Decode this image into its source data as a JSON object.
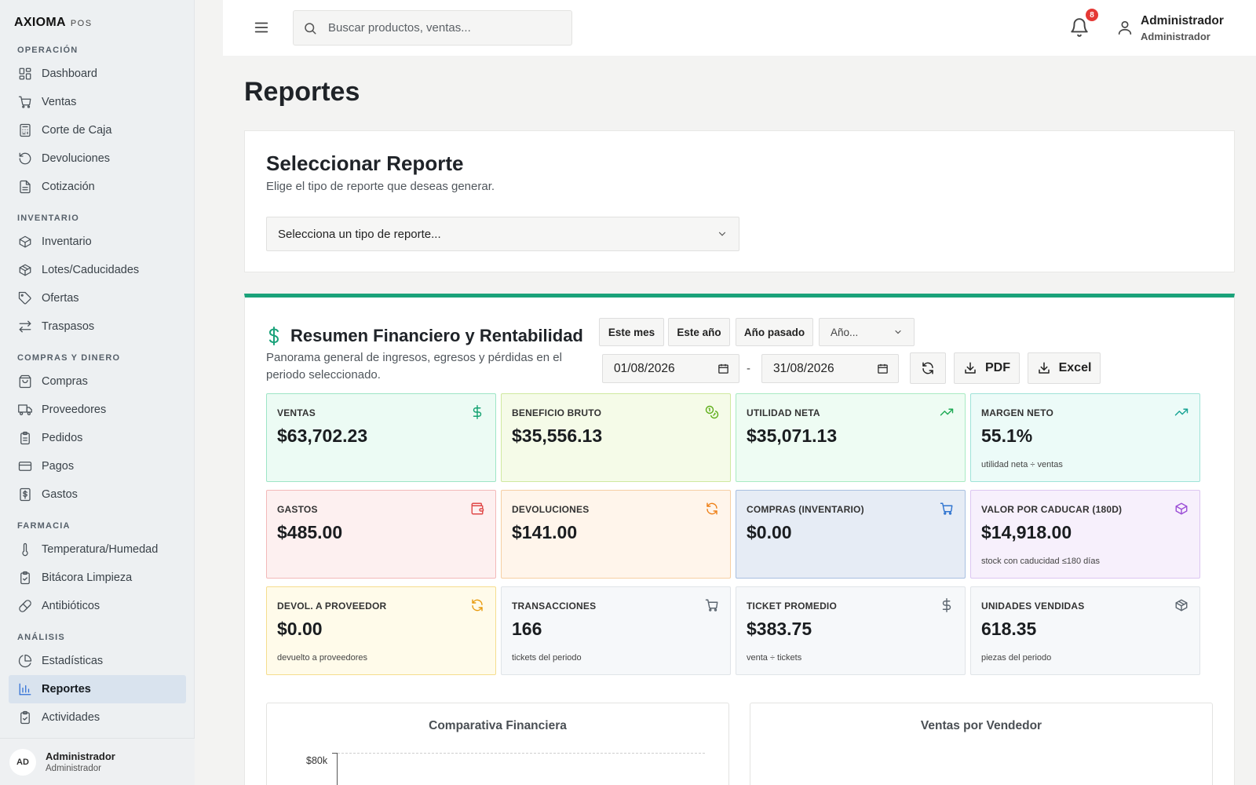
{
  "brand": {
    "name": "AXIOMA",
    "sub": "POS"
  },
  "sidebar": {
    "sections": [
      {
        "title": "OPERACIÓN",
        "items": [
          {
            "label": "Dashboard",
            "icon": "grid-icon"
          },
          {
            "label": "Ventas",
            "icon": "cart-icon"
          },
          {
            "label": "Corte de Caja",
            "icon": "calculator-icon"
          },
          {
            "label": "Devoluciones",
            "icon": "undo-icon"
          },
          {
            "label": "Cotización",
            "icon": "document-icon"
          }
        ]
      },
      {
        "title": "INVENTARIO",
        "items": [
          {
            "label": "Inventario",
            "icon": "box-icon"
          },
          {
            "label": "Lotes/Caducidades",
            "icon": "boxes-icon"
          },
          {
            "label": "Ofertas",
            "icon": "tag-icon"
          },
          {
            "label": "Traspasos",
            "icon": "transfer-icon"
          }
        ]
      },
      {
        "title": "COMPRAS Y DINERO",
        "items": [
          {
            "label": "Compras",
            "icon": "bag-icon"
          },
          {
            "label": "Proveedores",
            "icon": "truck-icon"
          },
          {
            "label": "Pedidos",
            "icon": "clipboard-icon"
          },
          {
            "label": "Pagos",
            "icon": "card-icon"
          },
          {
            "label": "Gastos",
            "icon": "receipt-icon"
          }
        ]
      },
      {
        "title": "FARMACIA",
        "items": [
          {
            "label": "Temperatura/Humedad",
            "icon": "thermometer-icon"
          },
          {
            "label": "Bitácora Limpieza",
            "icon": "clipboard-check-icon"
          },
          {
            "label": "Antibióticos",
            "icon": "pill-icon"
          }
        ]
      },
      {
        "title": "ANÁLISIS",
        "items": [
          {
            "label": "Estadísticas",
            "icon": "pie-icon"
          },
          {
            "label": "Reportes",
            "icon": "bar-chart-icon",
            "active": true
          },
          {
            "label": "Actividades",
            "icon": "clipboard-check-icon"
          }
        ]
      }
    ],
    "user": {
      "initials": "AD",
      "name": "Administrador",
      "role": "Administrador"
    }
  },
  "header": {
    "search_placeholder": "Buscar productos, ventas...",
    "notifications": "8",
    "user_name": "Administrador",
    "user_role": "Administrador"
  },
  "page": {
    "title": "Reportes"
  },
  "report_select": {
    "title": "Seleccionar Reporte",
    "subtitle": "Elige el tipo de reporte que deseas generar.",
    "placeholder": "Selecciona un tipo de reporte..."
  },
  "financial": {
    "title": "Resumen Financiero y Rentabilidad",
    "subtitle": "Panorama general de ingresos, egresos y pérdidas en el periodo seleccionado.",
    "accent": "#1aa27a",
    "period_buttons": [
      "Este mes",
      "Este año",
      "Año pasado"
    ],
    "year_select": "Año...",
    "date_from": "01/08/2026",
    "date_to": "31/08/2026",
    "date_separator": "-",
    "pdf_label": "PDF",
    "excel_label": "Excel",
    "kpis": [
      {
        "label": "VENTAS",
        "value": "$63,702.23",
        "note": "",
        "icon": "dollar-icon",
        "bg": "#ecfbf4",
        "border": "#9ee5c6",
        "icon_color": "#14a271"
      },
      {
        "label": "BENEFICIO BRUTO",
        "value": "$35,556.13",
        "note": "",
        "icon": "coins-icon",
        "bg": "#f5fbe8",
        "border": "#cfe9a0",
        "icon_color": "#5fae1a"
      },
      {
        "label": "UTILIDAD NETA",
        "value": "$35,071.13",
        "note": "",
        "icon": "trending-up-icon",
        "bg": "#eefcf3",
        "border": "#a9ebc3",
        "icon_color": "#1faa55"
      },
      {
        "label": "MARGEN NETO",
        "value": "55.1%",
        "note": "utilidad neta ÷ ventas",
        "icon": "trending-up-icon",
        "bg": "#ecfbf8",
        "border": "#9fe3d8",
        "icon_color": "#17a394"
      },
      {
        "label": "GASTOS",
        "value": "$485.00",
        "note": "",
        "icon": "wallet-icon",
        "bg": "#fdf0f0",
        "border": "#f3b9b9",
        "icon_color": "#e04848"
      },
      {
        "label": "DEVOLUCIONES",
        "value": "$141.00",
        "note": "",
        "icon": "refresh-icon",
        "bg": "#fff5eb",
        "border": "#f6cfa3",
        "icon_color": "#ee7f16"
      },
      {
        "label": "COMPRAS (INVENTARIO)",
        "value": "$0.00",
        "note": "",
        "icon": "cart-icon",
        "bg": "#e6ecf5",
        "border": "#a8bfe0",
        "icon_color": "#2f74d0"
      },
      {
        "label": "VALOR POR CADUCAR (180D)",
        "value": "$14,918.00",
        "note": "stock con caducidad ≤180 días",
        "icon": "box-icon",
        "bg": "#f7f0fc",
        "border": "#dcc6f1",
        "icon_color": "#9c4fd6"
      },
      {
        "label": "DEVOL. A PROVEEDOR",
        "value": "$0.00",
        "note": "devuelto a proveedores",
        "icon": "refresh-icon",
        "bg": "#fffbea",
        "border": "#f5dd8e",
        "icon_color": "#e89b0f"
      },
      {
        "label": "TRANSACCIONES",
        "value": "166",
        "note": "tickets del periodo",
        "icon": "cart-icon",
        "bg": "#f6f8fa",
        "border": "#e0e4e8",
        "icon_color": "#5c6670"
      },
      {
        "label": "TICKET PROMEDIO",
        "value": "$383.75",
        "note": "venta ÷ tickets",
        "icon": "dollar-icon",
        "bg": "#f6f8fa",
        "border": "#e0e4e8",
        "icon_color": "#5c6670"
      },
      {
        "label": "UNIDADES VENDIDAS",
        "value": "618.35",
        "note": "piezas del periodo",
        "icon": "boxes-icon",
        "bg": "#f6f8fa",
        "border": "#e0e4e8",
        "icon_color": "#5c6670"
      }
    ],
    "chart_left_title": "Comparativa Financiera",
    "chart_left_axis_label": "$80k",
    "chart_right_title": "Ventas por Vendedor"
  }
}
